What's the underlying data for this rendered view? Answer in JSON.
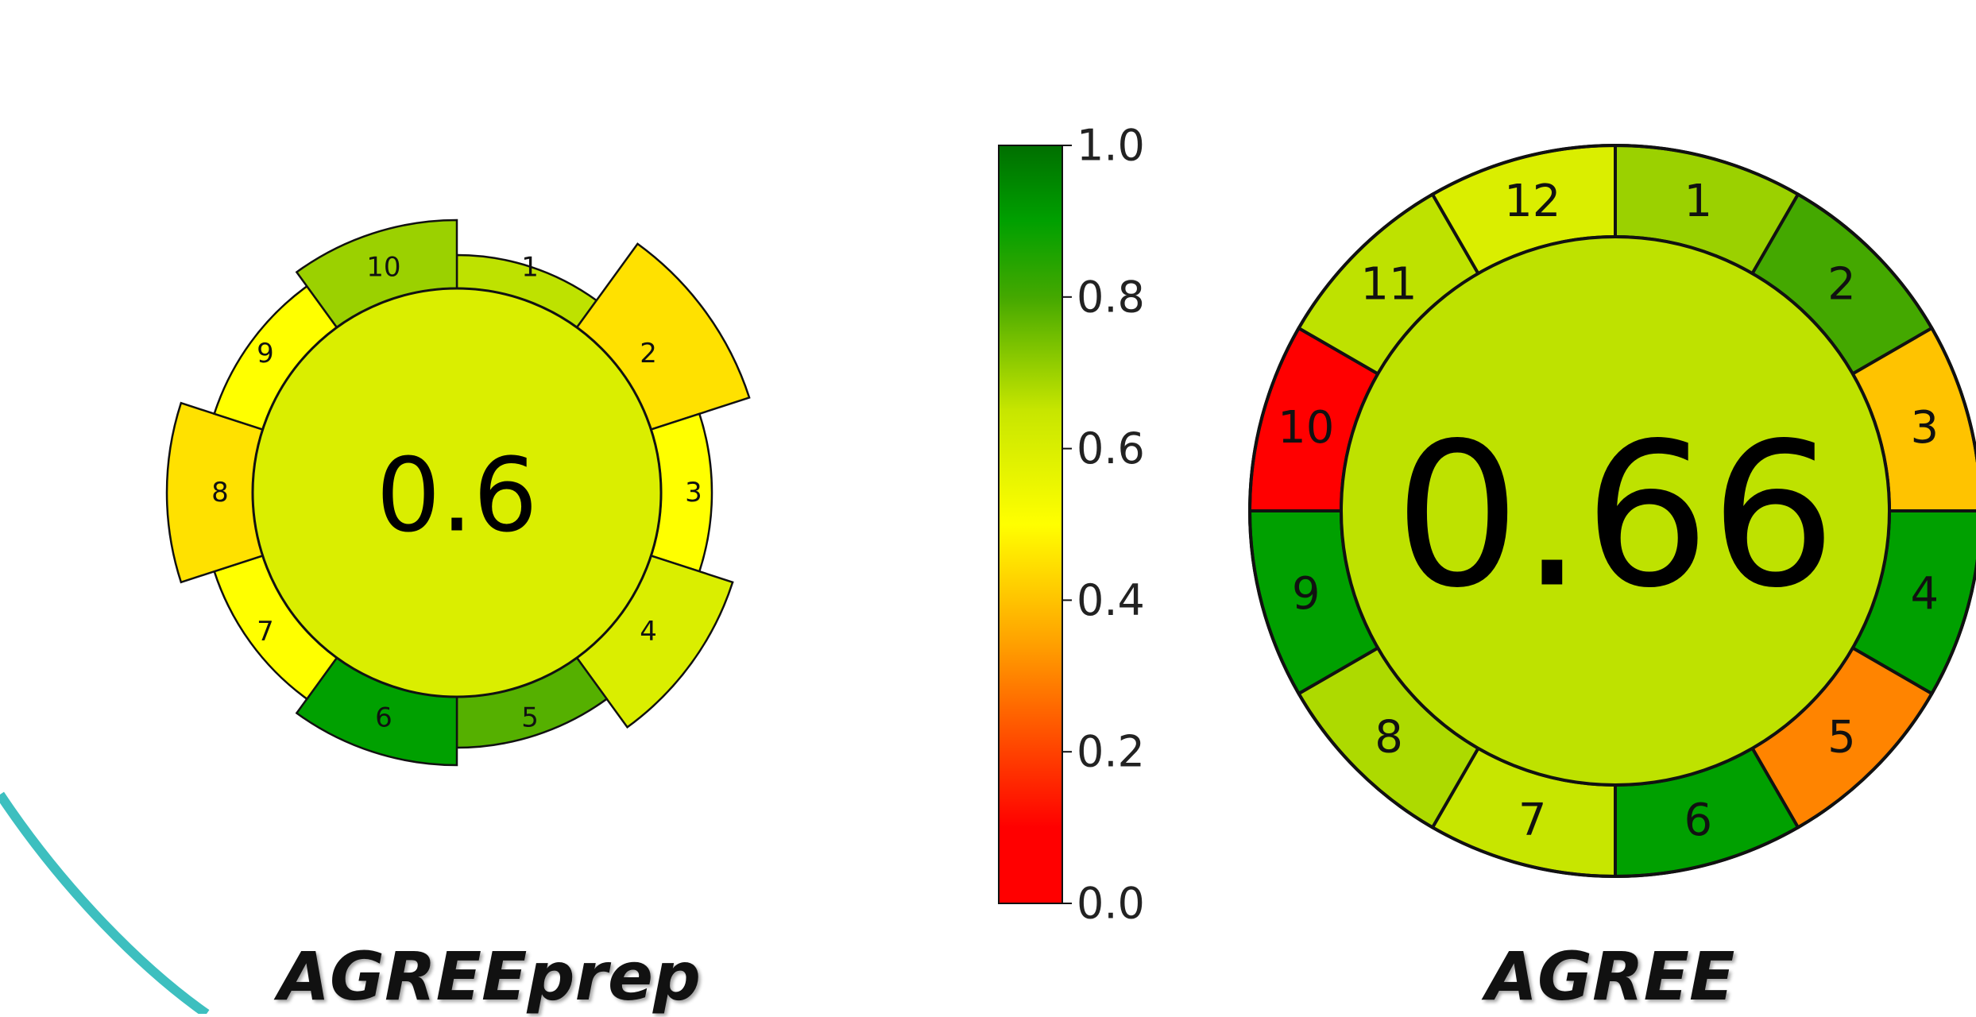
{
  "chart_data": [
    {
      "type": "radial-bar",
      "caption": "AGREEprep",
      "center_score": "0.6",
      "center_value": 0.6,
      "segments": [
        {
          "label": "1",
          "value": 0.66,
          "weight": 1
        },
        {
          "label": "2",
          "value": 0.45,
          "weight": 5
        },
        {
          "label": "3",
          "value": 0.5,
          "weight": 2
        },
        {
          "label": "4",
          "value": 0.6,
          "weight": 4
        },
        {
          "label": "5",
          "value": 0.78,
          "weight": 2
        },
        {
          "label": "6",
          "value": 0.9,
          "weight": 3
        },
        {
          "label": "7",
          "value": 0.5,
          "weight": 2
        },
        {
          "label": "8",
          "value": 0.45,
          "weight": 4
        },
        {
          "label": "9",
          "value": 0.5,
          "weight": 2
        },
        {
          "label": "10",
          "value": 0.7,
          "weight": 3
        }
      ]
    },
    {
      "type": "ring",
      "caption": "AGREE",
      "center_score": "0.66",
      "center_value": 0.66,
      "segments": [
        {
          "label": "1",
          "value": 0.7
        },
        {
          "label": "2",
          "value": 0.8
        },
        {
          "label": "3",
          "value": 0.4
        },
        {
          "label": "4",
          "value": 0.9
        },
        {
          "label": "5",
          "value": 0.3
        },
        {
          "label": "6",
          "value": 0.9
        },
        {
          "label": "7",
          "value": 0.65
        },
        {
          "label": "8",
          "value": 0.68
        },
        {
          "label": "9",
          "value": 0.9
        },
        {
          "label": "10",
          "value": 0.0
        },
        {
          "label": "11",
          "value": 0.66
        },
        {
          "label": "12",
          "value": 0.6
        }
      ]
    }
  ],
  "colorbar": {
    "ticks": [
      "0.0",
      "0.2",
      "0.4",
      "0.6",
      "0.8",
      "1.0"
    ],
    "range": [
      0,
      1
    ],
    "stops": [
      {
        "value": 0.0,
        "color": "#ff0000"
      },
      {
        "value": 0.1,
        "color": "#ff0000"
      },
      {
        "value": 0.35,
        "color": "#ffa500"
      },
      {
        "value": 0.5,
        "color": "#ffff00"
      },
      {
        "value": 0.65,
        "color": "#c7e600"
      },
      {
        "value": 0.8,
        "color": "#44a800"
      },
      {
        "value": 0.9,
        "color": "#00a000"
      },
      {
        "value": 1.0,
        "color": "#006f00"
      }
    ]
  },
  "decoration": {
    "accent_color": "#3dbfbf"
  }
}
